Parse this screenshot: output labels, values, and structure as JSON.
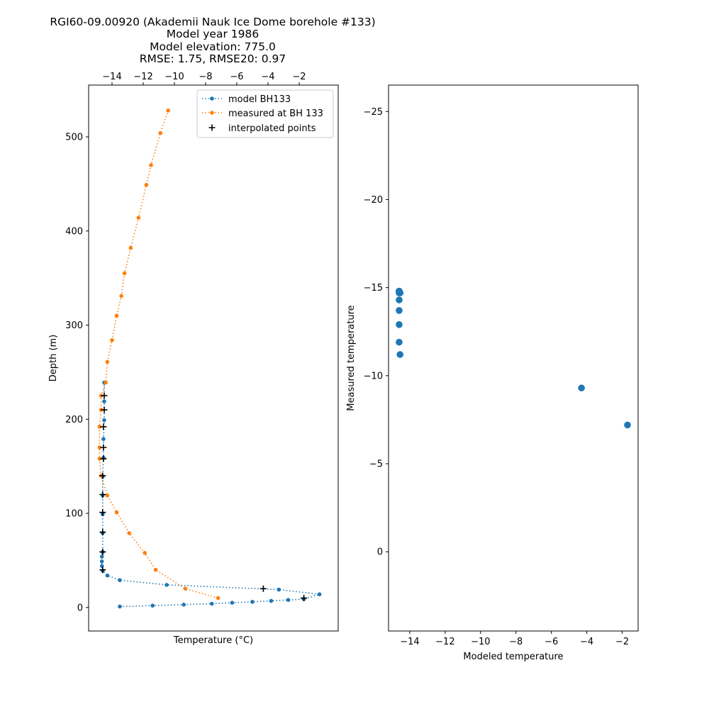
{
  "title": [
    "RGI60-09.00920 (Akademii Nauk Ice Dome borehole #133)",
    "Model year 1986",
    "Model elevation: 775.0",
    "RMSE: 1.75, RMSE20: 0.97"
  ],
  "colors": {
    "model": "#1f77b4",
    "measured": "#ff7f0e",
    "interpolated": "#000000"
  },
  "chart_data": [
    {
      "type": "line",
      "xlabel": "Temperature (°C)",
      "ylabel": "Depth (m)",
      "xaxis_position": "top",
      "xlim": [
        -15.5,
        0.5
      ],
      "ylim": [
        -25,
        555
      ],
      "xticks": [
        -14,
        -12,
        -10,
        -8,
        -6,
        -4,
        -2
      ],
      "yticks": [
        0,
        100,
        200,
        300,
        400,
        500
      ],
      "legend_position": "top-right",
      "series": [
        {
          "name": "model BH133",
          "style": "dotted-line-with-dots",
          "points": [
            [
              -13.5,
              1
            ],
            [
              -11.4,
              2
            ],
            [
              -9.4,
              3
            ],
            [
              -7.6,
              4
            ],
            [
              -6.3,
              5
            ],
            [
              -5.0,
              6
            ],
            [
              -3.8,
              7
            ],
            [
              -2.7,
              8
            ],
            [
              -1.7,
              9
            ],
            [
              -0.7,
              14
            ],
            [
              -3.3,
              19
            ],
            [
              -10.5,
              24
            ],
            [
              -13.5,
              29
            ],
            [
              -14.3,
              34
            ],
            [
              -14.6,
              39
            ],
            [
              -14.65,
              44
            ],
            [
              -14.65,
              49
            ],
            [
              -14.65,
              54
            ],
            [
              -14.6,
              59
            ],
            [
              -14.6,
              79
            ],
            [
              -14.6,
              99
            ],
            [
              -14.6,
              119
            ],
            [
              -14.6,
              139
            ],
            [
              -14.55,
              159
            ],
            [
              -14.55,
              179
            ],
            [
              -14.5,
              199
            ],
            [
              -14.5,
              219
            ],
            [
              -14.5,
              239
            ]
          ]
        },
        {
          "name": "measured at BH 133",
          "style": "dotted-line-with-dots",
          "points": [
            [
              -7.2,
              10
            ],
            [
              -9.3,
              20
            ],
            [
              -11.2,
              40
            ],
            [
              -11.9,
              58
            ],
            [
              -12.9,
              79
            ],
            [
              -13.7,
              101
            ],
            [
              -14.3,
              119
            ],
            [
              -14.7,
              140
            ],
            [
              -14.8,
              158
            ],
            [
              -14.8,
              170
            ],
            [
              -14.8,
              192
            ],
            [
              -14.7,
              210
            ],
            [
              -14.7,
              225
            ],
            [
              -14.4,
              239
            ],
            [
              -14.3,
              261
            ],
            [
              -14.0,
              284
            ],
            [
              -13.7,
              310
            ],
            [
              -13.4,
              331
            ],
            [
              -13.2,
              355
            ],
            [
              -12.8,
              382
            ],
            [
              -12.3,
              414
            ],
            [
              -11.8,
              449
            ],
            [
              -11.5,
              470
            ],
            [
              -10.9,
              504
            ],
            [
              -10.4,
              528
            ]
          ]
        },
        {
          "name": "interpolated points",
          "style": "plus-markers",
          "points": [
            [
              -1.7,
              10
            ],
            [
              -4.3,
              20
            ],
            [
              -14.6,
              40
            ],
            [
              -14.6,
              59
            ],
            [
              -14.6,
              80
            ],
            [
              -14.6,
              101
            ],
            [
              -14.6,
              120
            ],
            [
              -14.6,
              140
            ],
            [
              -14.55,
              158
            ],
            [
              -14.55,
              170
            ],
            [
              -14.55,
              192
            ],
            [
              -14.5,
              210
            ],
            [
              -14.5,
              225
            ]
          ]
        }
      ]
    },
    {
      "type": "scatter",
      "xlabel": "Modeled temperature",
      "ylabel": "Measured temperature",
      "yaxis_inverted": true,
      "xlim": [
        -15.2,
        -1.1
      ],
      "ylim": [
        4.5,
        -26.5
      ],
      "xticks": [
        -14,
        -12,
        -10,
        -8,
        -6,
        -4,
        -2
      ],
      "yticks": [
        -25,
        -20,
        -15,
        -10,
        -5,
        0
      ],
      "series": [
        {
          "name": "",
          "points": [
            [
              -1.7,
              -7.2
            ],
            [
              -4.3,
              -9.3
            ],
            [
              -14.55,
              -11.2
            ],
            [
              -14.6,
              -11.9
            ],
            [
              -14.6,
              -12.9
            ],
            [
              -14.6,
              -13.7
            ],
            [
              -14.6,
              -14.3
            ],
            [
              -14.6,
              -14.7
            ],
            [
              -14.6,
              -14.8
            ],
            [
              -14.6,
              -14.8
            ],
            [
              -14.6,
              -14.8
            ],
            [
              -14.55,
              -14.7
            ],
            [
              -14.55,
              -14.7
            ]
          ]
        }
      ]
    }
  ]
}
